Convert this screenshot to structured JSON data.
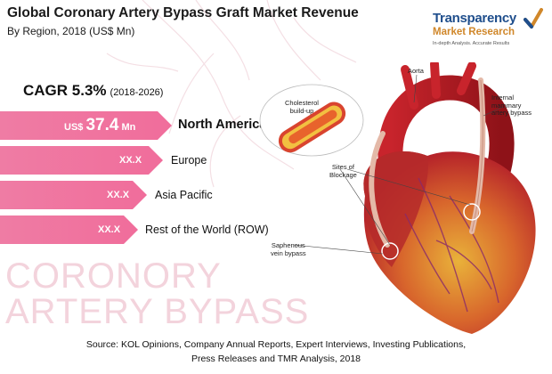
{
  "header": {
    "title": "Global Coronary Artery Bypass Graft Market Revenue",
    "subtitle": "By Region, 2018 (US$ Mn)"
  },
  "logo": {
    "line1": "Transparency",
    "line2": "Market Research",
    "tagline": "In-depth Analysis. Accurate Results"
  },
  "cagr": {
    "label": "CAGR 5.3%",
    "period": "(2018-2026)"
  },
  "regions": [
    {
      "prefix": "US$",
      "value": "37.4",
      "unit": "Mn",
      "name": "North America"
    },
    {
      "value": "XX.X",
      "name": "Europe"
    },
    {
      "value": "XX.X",
      "name": "Asia Pacific"
    },
    {
      "value": "XX.X",
      "name": "Rest of the World (ROW)"
    }
  ],
  "watermark": {
    "line1": "CORONORY",
    "line2": "ARTERY BYPASS"
  },
  "illustration": {
    "aorta": "Aorta",
    "mammary_line1": "Internal",
    "mammary_line2": "mammary",
    "mammary_line3": "artery bypass",
    "cholesterol_line1": "Cholesterol",
    "cholesterol_line2": "build-up",
    "blockage_line1": "Sites of",
    "blockage_line2": "Blockage",
    "saphenous_line1": "Saphenous",
    "saphenous_line2": "vein bypass"
  },
  "source": {
    "line1": "Source: KOL Opinions, Company Annual Reports, Expert Interviews, Investing Publications,",
    "line2": "Press Releases and TMR Analysis, 2018"
  },
  "colors": {
    "bar": "#f06d9b",
    "watermark": "#f3d3dc",
    "logo_blue": "#1f4e8c",
    "logo_orange": "#d0872a",
    "heart_red": "#c8242c"
  }
}
